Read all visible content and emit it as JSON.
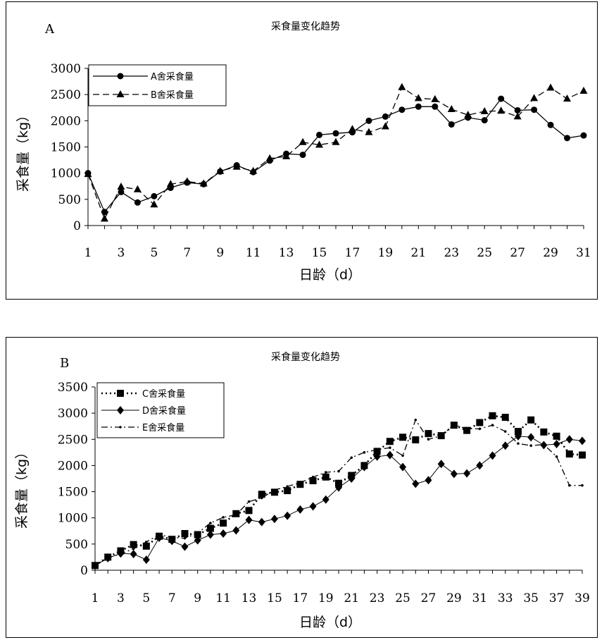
{
  "chart_data": [
    {
      "type": "line",
      "panel_label": "A",
      "title": "采食量变化趋势",
      "xlabel": "日龄（d）",
      "ylabel": "采食量（kg）",
      "ylim": [
        0,
        3000
      ],
      "yticks": [
        0,
        500,
        1000,
        1500,
        2000,
        2500,
        3000
      ],
      "xlim": [
        1,
        31
      ],
      "xticks": [
        "1",
        "3",
        "5",
        "7",
        "9",
        "11",
        "13",
        "15",
        "17",
        "19",
        "21",
        "23",
        "25",
        "27",
        "29",
        "31"
      ],
      "grid": false,
      "legend_position": "top-left",
      "x": [
        1,
        2,
        3,
        4,
        5,
        6,
        7,
        8,
        9,
        10,
        11,
        12,
        13,
        14,
        15,
        16,
        17,
        18,
        19,
        20,
        21,
        22,
        23,
        24,
        25,
        26,
        27,
        28,
        29,
        30,
        31
      ],
      "series": [
        {
          "name": "A舍采食量",
          "marker": "circle",
          "line_style": "solid",
          "values": [
            1000,
            260,
            640,
            440,
            560,
            720,
            820,
            790,
            1030,
            1150,
            1020,
            1240,
            1370,
            1350,
            1730,
            1760,
            1780,
            2000,
            2080,
            2210,
            2270,
            2270,
            1930,
            2060,
            2010,
            2420,
            2200,
            2210,
            1920,
            1670,
            1720
          ]
        },
        {
          "name": "B舍采食量",
          "marker": "triangle",
          "line_style": "dashed",
          "values": [
            980,
            130,
            740,
            690,
            400,
            790,
            840,
            800,
            1040,
            1120,
            1040,
            1280,
            1320,
            1590,
            1540,
            1590,
            1840,
            1780,
            1890,
            2640,
            2430,
            2410,
            2220,
            2110,
            2180,
            2190,
            2080,
            2430,
            2630,
            2420,
            2570
          ]
        }
      ]
    },
    {
      "type": "line",
      "panel_label": "B",
      "title": "采食量变化趋势",
      "xlabel": "日龄（d）",
      "ylabel": "采食量（kg）",
      "ylim": [
        0,
        3500
      ],
      "yticks": [
        0,
        500,
        1000,
        1500,
        2000,
        2500,
        3000,
        3500
      ],
      "xlim": [
        1,
        39
      ],
      "xticks": [
        "1",
        "3",
        "5",
        "7",
        "9",
        "11",
        "13",
        "15",
        "17",
        "19",
        "21",
        "23",
        "25",
        "27",
        "29",
        "31",
        "33",
        "35",
        "37",
        "39"
      ],
      "grid": false,
      "legend_position": "top-left",
      "x": [
        1,
        2,
        3,
        4,
        5,
        6,
        7,
        8,
        9,
        10,
        11,
        12,
        13,
        14,
        15,
        16,
        17,
        18,
        19,
        20,
        21,
        22,
        23,
        24,
        25,
        26,
        27,
        28,
        29,
        30,
        31,
        32,
        33,
        34,
        35,
        36,
        37,
        38,
        39
      ],
      "series": [
        {
          "name": "C舍采食量",
          "marker": "square",
          "line_style": "dotted",
          "values": [
            90,
            250,
            370,
            490,
            460,
            650,
            590,
            700,
            680,
            800,
            900,
            1080,
            1140,
            1450,
            1490,
            1520,
            1640,
            1710,
            1780,
            1660,
            1810,
            2000,
            2270,
            2460,
            2540,
            2490,
            2610,
            2570,
            2770,
            2670,
            2820,
            2950,
            2920,
            2650,
            2870,
            2640,
            2560,
            2220,
            2200
          ]
        },
        {
          "name": "D舍采食量",
          "marker": "diamond",
          "line_style": "solid-thin",
          "values": [
            90,
            230,
            320,
            310,
            200,
            620,
            560,
            450,
            570,
            680,
            700,
            760,
            960,
            920,
            980,
            1040,
            1160,
            1220,
            1350,
            1580,
            1750,
            1970,
            2170,
            2200,
            1970,
            1650,
            1720,
            2030,
            1840,
            1850,
            2000,
            2190,
            2380,
            2560,
            2540,
            2390,
            2410,
            2500,
            2470
          ]
        },
        {
          "name": "E舍采食量",
          "marker": "dot",
          "line_style": "dash-dot",
          "values": [
            100,
            240,
            310,
            410,
            540,
            680,
            630,
            610,
            710,
            900,
            1010,
            1060,
            1310,
            1380,
            1530,
            1600,
            1670,
            1780,
            1870,
            1890,
            2150,
            2250,
            2300,
            2340,
            2190,
            2870,
            2500,
            2570,
            2780,
            2700,
            2700,
            2770,
            2650,
            2420,
            2380,
            2400,
            2170,
            1620,
            1620
          ]
        }
      ]
    }
  ]
}
